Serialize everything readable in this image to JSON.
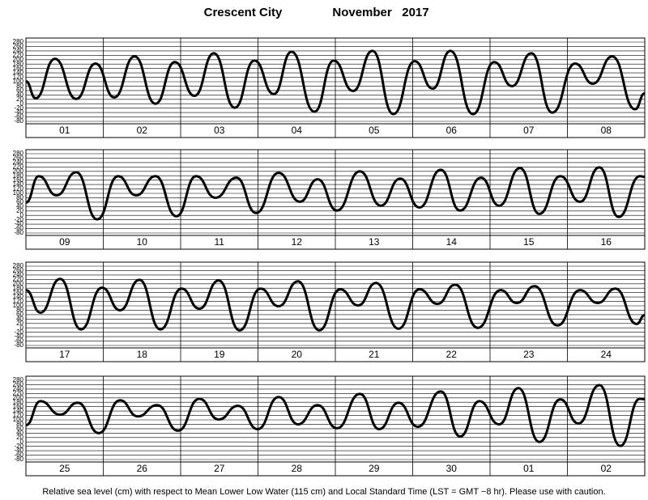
{
  "title": "Crescent City",
  "subtitle": "November   2017",
  "footnote": "Relative sea level (cm) with respect to Mean Lower Low Water (115 cm) and Local Standard Time (LST = GMT −8 hr). Please use with caution.",
  "chart_data": [
    {
      "type": "line",
      "xlim": [
        0,
        192
      ],
      "ylim": [
        -80,
        280
      ],
      "yticks": [
        -80,
        -60,
        -40,
        -20,
        0,
        20,
        40,
        60,
        80,
        100,
        120,
        140,
        160,
        180,
        200,
        220,
        240,
        260,
        280
      ],
      "xticks": [
        24,
        48,
        72,
        96,
        120,
        144,
        168
      ],
      "xtick_labels": [
        {
          "value": 12,
          "label": "01"
        },
        {
          "value": 36,
          "label": "02"
        },
        {
          "value": 60,
          "label": "03"
        },
        {
          "value": 84,
          "label": "04"
        },
        {
          "value": 108,
          "label": "05"
        },
        {
          "value": 132,
          "label": "06"
        },
        {
          "value": 156,
          "label": "07"
        },
        {
          "value": 180,
          "label": "08"
        }
      ],
      "grid": true,
      "color": "#000000",
      "x": [
        0,
        3,
        9,
        15.6,
        21.6,
        27.4,
        33.7,
        40.2,
        46.2,
        52.3,
        58.3,
        64.8,
        70.9,
        76.9,
        82.4,
        89.5,
        95.5,
        101.5,
        107.5,
        114,
        120.6,
        126.2,
        131.7,
        138.7,
        145.3,
        150.8,
        156.8,
        163.3,
        170.4,
        175.9,
        181.9,
        189,
        192
      ],
      "values": [
        102,
        25,
        204,
        22,
        182,
        29,
        215,
        0,
        189,
        36,
        229,
        -18,
        196,
        44,
        236,
        -36,
        196,
        58,
        240,
        -47,
        193,
        69,
        240,
        -47,
        189,
        80,
        229,
        -40,
        182,
        91,
        215,
        -25,
        47
      ]
    },
    {
      "type": "line",
      "xlim": [
        0,
        192
      ],
      "ylim": [
        -80,
        280
      ],
      "yticks": [
        -80,
        -60,
        -40,
        -20,
        0,
        20,
        40,
        60,
        80,
        100,
        120,
        140,
        160,
        180,
        200,
        220,
        240,
        260,
        280
      ],
      "xticks": [
        24,
        48,
        72,
        96,
        120,
        144,
        168
      ],
      "xtick_labels": [
        {
          "value": 12,
          "label": "09"
        },
        {
          "value": 36,
          "label": "10"
        },
        {
          "value": 60,
          "label": "11"
        },
        {
          "value": 84,
          "label": "12"
        },
        {
          "value": 108,
          "label": "13"
        },
        {
          "value": 132,
          "label": "14"
        },
        {
          "value": 156,
          "label": "15"
        },
        {
          "value": 180,
          "label": "16"
        }
      ],
      "grid": true,
      "color": "#000000",
      "x": [
        0,
        4,
        9.5,
        15.6,
        22.1,
        28.6,
        34.2,
        40.2,
        46.7,
        52.8,
        58.8,
        65.3,
        71.4,
        78.4,
        85,
        90.5,
        96.5,
        103.6,
        110.1,
        116.1,
        122.1,
        128.7,
        134.7,
        141.2,
        146.8,
        153.3,
        159.3,
        165.8,
        171.9,
        177.9,
        183.9,
        190.5,
        192
      ],
      "values": [
        58,
        178,
        91,
        196,
        -18,
        178,
        91,
        178,
        -4,
        178,
        80,
        171,
        11,
        193,
        62,
        164,
        22,
        200,
        44,
        167,
        36,
        207,
        22,
        171,
        44,
        215,
        7,
        178,
        62,
        218,
        -7,
        178,
        175
      ]
    },
    {
      "type": "line",
      "xlim": [
        0,
        192
      ],
      "ylim": [
        -80,
        280
      ],
      "yticks": [
        -80,
        -60,
        -40,
        -20,
        0,
        20,
        40,
        60,
        80,
        100,
        120,
        140,
        160,
        180,
        200,
        220,
        240,
        260,
        280
      ],
      "xticks": [
        24,
        48,
        72,
        96,
        120,
        144,
        168
      ],
      "xtick_labels": [
        {
          "value": 12,
          "label": "17"
        },
        {
          "value": 36,
          "label": "18"
        },
        {
          "value": 60,
          "label": "19"
        },
        {
          "value": 84,
          "label": "20"
        },
        {
          "value": 108,
          "label": "21"
        },
        {
          "value": 132,
          "label": "22"
        },
        {
          "value": 156,
          "label": "23"
        },
        {
          "value": 180,
          "label": "24"
        }
      ],
      "grid": true,
      "color": "#000000",
      "x": [
        0,
        4.5,
        10.6,
        17.1,
        23.6,
        29.2,
        35.2,
        41.7,
        48.3,
        53.8,
        59.8,
        66.3,
        72.8,
        78.4,
        84.4,
        91,
        97.5,
        103.1,
        108.6,
        115.6,
        122.1,
        127.7,
        133.2,
        140.2,
        147.3,
        152.3,
        157.8,
        164.9,
        171.9,
        177.4,
        182.9,
        189.5,
        192
      ],
      "values": [
        171,
        69,
        222,
        -7,
        182,
        80,
        218,
        -7,
        178,
        87,
        215,
        -11,
        178,
        98,
        211,
        -11,
        175,
        102,
        204,
        -4,
        175,
        109,
        196,
        0,
        171,
        113,
        189,
        11,
        171,
        113,
        178,
        18,
        58
      ]
    },
    {
      "type": "line",
      "xlim": [
        0,
        192
      ],
      "ylim": [
        -80,
        280
      ],
      "yticks": [
        -80,
        -60,
        -40,
        -20,
        0,
        20,
        40,
        60,
        80,
        100,
        120,
        140,
        160,
        180,
        200,
        220,
        240,
        260,
        280
      ],
      "xticks": [
        24,
        48,
        72,
        96,
        120,
        144,
        168
      ],
      "xtick_labels": [
        {
          "value": 12,
          "label": "25"
        },
        {
          "value": 36,
          "label": "26"
        },
        {
          "value": 60,
          "label": "27"
        },
        {
          "value": 84,
          "label": "28"
        },
        {
          "value": 108,
          "label": "29"
        },
        {
          "value": 132,
          "label": "30"
        },
        {
          "value": 156,
          "label": "01"
        },
        {
          "value": 180,
          "label": "02"
        }
      ],
      "grid": true,
      "color": "#000000",
      "x": [
        0,
        4.5,
        10.6,
        16.1,
        22.6,
        29.2,
        34.7,
        40.7,
        47.2,
        53.8,
        59.8,
        65.8,
        71.9,
        78.4,
        84.4,
        90.5,
        96.5,
        103.6,
        109.6,
        115.6,
        121.6,
        128.7,
        134.7,
        140.7,
        146.8,
        152.8,
        159.3,
        165.8,
        171.4,
        177.9,
        184.4,
        190.5,
        192
      ],
      "values": [
        76,
        185,
        124,
        178,
        40,
        189,
        116,
        167,
        51,
        196,
        102,
        164,
        58,
        204,
        80,
        167,
        62,
        218,
        58,
        178,
        69,
        229,
        25,
        185,
        80,
        244,
        0,
        193,
        84,
        258,
        -18,
        196,
        194
      ]
    }
  ]
}
